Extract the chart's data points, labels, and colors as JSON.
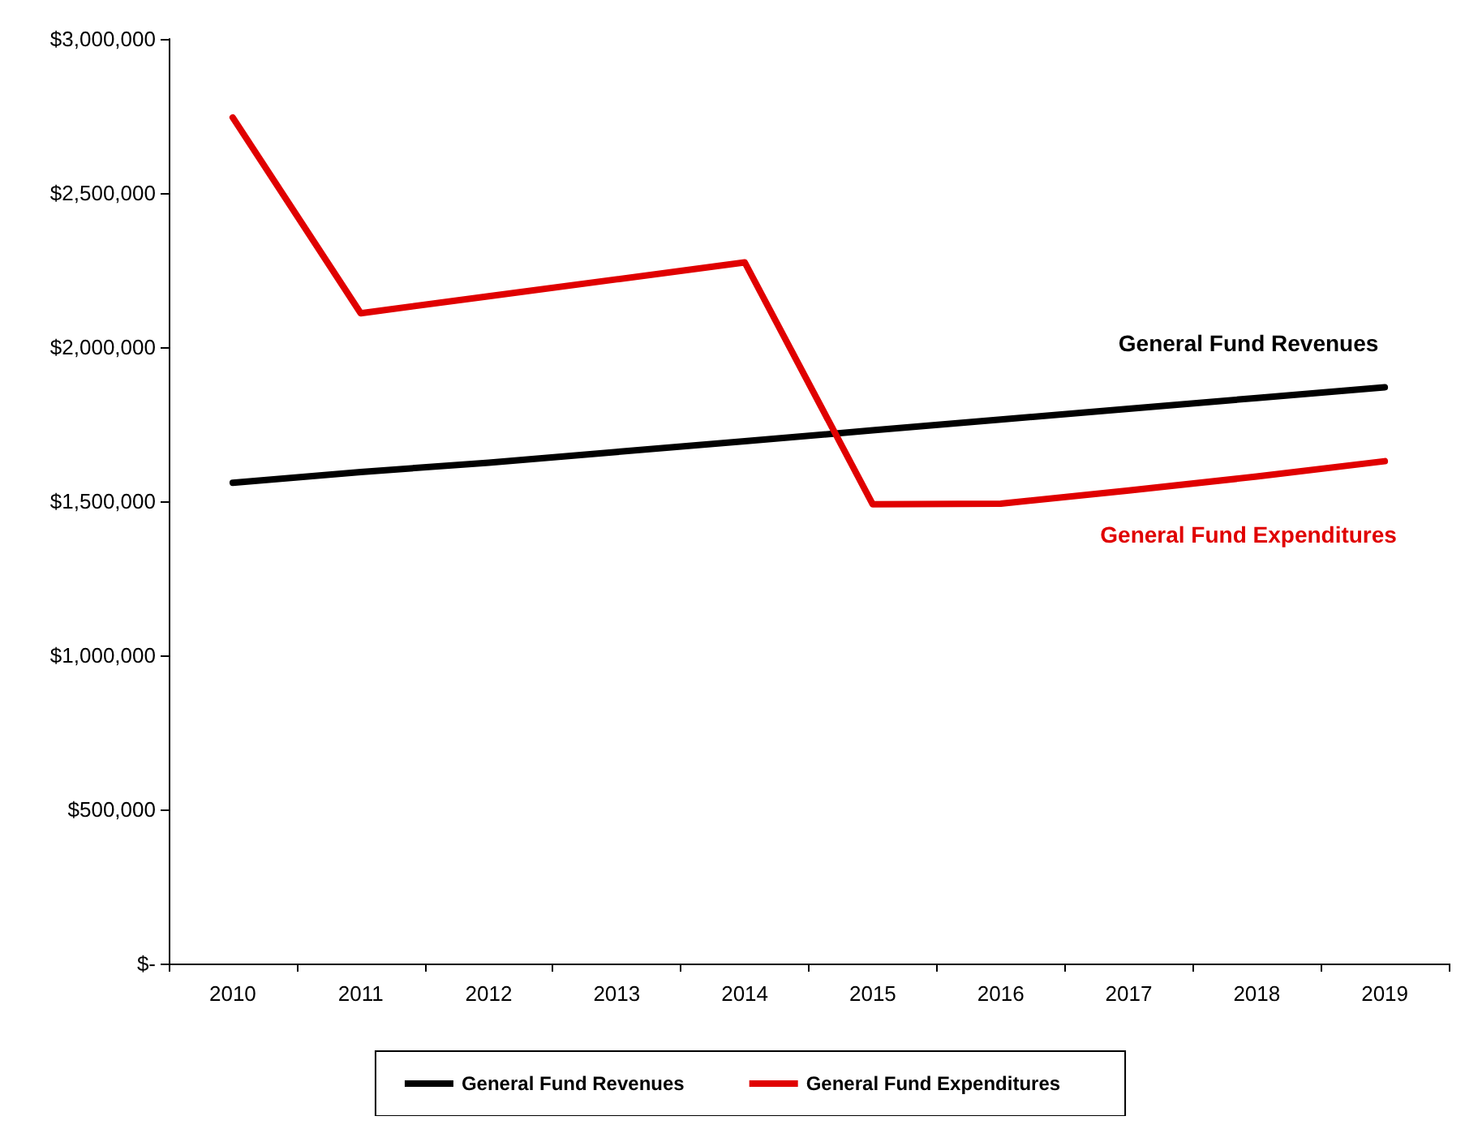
{
  "chart_data": {
    "type": "line",
    "categories": [
      "2010",
      "2011",
      "2012",
      "2013",
      "2014",
      "2015",
      "2016",
      "2017",
      "2018",
      "2019"
    ],
    "series": [
      {
        "name": "General Fund Revenues",
        "color": "#000000",
        "values": [
          1560000,
          1595000,
          1625000,
          1660000,
          1695000,
          1730000,
          1765000,
          1800000,
          1835000,
          1870000
        ]
      },
      {
        "name": "General Fund Expenditures",
        "color": "#e00000",
        "values": [
          2745000,
          2110000,
          2165000,
          2220000,
          2275000,
          1490000,
          1492000,
          1535000,
          1580000,
          1630000
        ]
      }
    ],
    "ylim": [
      0,
      3000000
    ],
    "yticks": [
      {
        "value": 0,
        "label": "$-"
      },
      {
        "value": 500000,
        "label": "$500,000"
      },
      {
        "value": 1000000,
        "label": "$1,000,000"
      },
      {
        "value": 1500000,
        "label": "$1,500,000"
      },
      {
        "value": 2000000,
        "label": "$2,000,000"
      },
      {
        "value": 2500000,
        "label": "$2,500,000"
      },
      {
        "value": 3000000,
        "label": "$3,000,000"
      }
    ],
    "annotations": [
      "General Fund Revenues",
      "General Fund Expenditures"
    ],
    "legend": "bottom",
    "grid": false,
    "marker": "none",
    "line_style": "solid"
  }
}
